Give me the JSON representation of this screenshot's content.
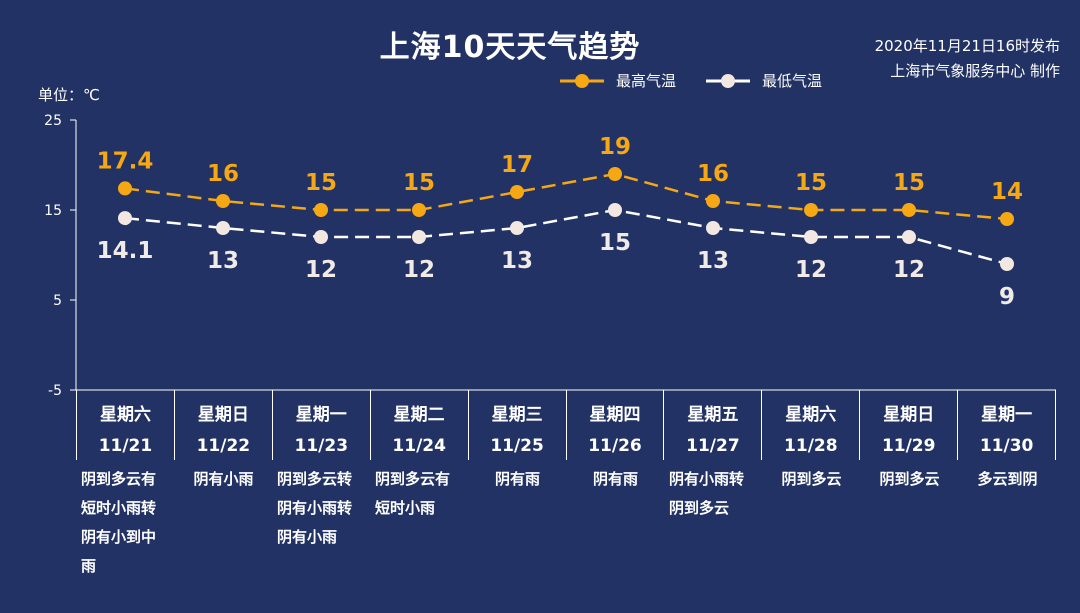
{
  "title": "上海10天天气趋势",
  "issue": {
    "line1": "2020年11月21日16时发布",
    "line2": "上海市气象服务中心 制作"
  },
  "unit_label": "单位：℃",
  "legend": {
    "high": "最高气温",
    "low": "最低气温"
  },
  "colors": {
    "background": "#223264",
    "high": "#f5a814",
    "low": "#ffffff",
    "low_marker": "#f3e8e1"
  },
  "chart_data": {
    "type": "line",
    "ylim": [
      -5,
      25
    ],
    "yticks": [
      -5,
      5,
      15,
      25
    ],
    "ylabel": "单位：℃",
    "categories": [
      "11/21",
      "11/22",
      "11/23",
      "11/24",
      "11/25",
      "11/26",
      "11/27",
      "11/28",
      "11/29",
      "11/30"
    ],
    "series": [
      {
        "name": "最高气温",
        "values": [
          17.4,
          16,
          15,
          15,
          17,
          19,
          16,
          15,
          15,
          14
        ],
        "labels": [
          "17.4",
          "16",
          "15",
          "15",
          "17",
          "19",
          "16",
          "15",
          "15",
          "14"
        ]
      },
      {
        "name": "最低气温",
        "values": [
          14.1,
          13,
          12,
          12,
          13,
          15,
          13,
          12,
          12,
          9
        ],
        "labels": [
          "14.1",
          "13",
          "12",
          "12",
          "13",
          "15",
          "13",
          "12",
          "12",
          "9"
        ]
      }
    ],
    "legend": "top-center",
    "grid": false
  },
  "days": [
    {
      "week": "星期六",
      "date": "11/21",
      "weather": "阴到多云有\n短时小雨转\n阴有小到中\n雨",
      "align": "left"
    },
    {
      "week": "星期日",
      "date": "11/22",
      "weather": "阴有小雨",
      "align": "center"
    },
    {
      "week": "星期一",
      "date": "11/23",
      "weather": "阴到多云转\n阴有小雨转\n阴有小雨",
      "align": "left"
    },
    {
      "week": "星期二",
      "date": "11/24",
      "weather": "阴到多云有\n短时小雨",
      "align": "left"
    },
    {
      "week": "星期三",
      "date": "11/25",
      "weather": "阴有雨",
      "align": "center"
    },
    {
      "week": "星期四",
      "date": "11/26",
      "weather": "阴有雨",
      "align": "center"
    },
    {
      "week": "星期五",
      "date": "11/27",
      "weather": "阴有小雨转\n阴到多云",
      "align": "left"
    },
    {
      "week": "星期六",
      "date": "11/28",
      "weather": "阴到多云",
      "align": "center"
    },
    {
      "week": "星期日",
      "date": "11/29",
      "weather": "阴到多云",
      "align": "center"
    },
    {
      "week": "星期一",
      "date": "11/30",
      "weather": "多云到阴",
      "align": "center"
    }
  ]
}
